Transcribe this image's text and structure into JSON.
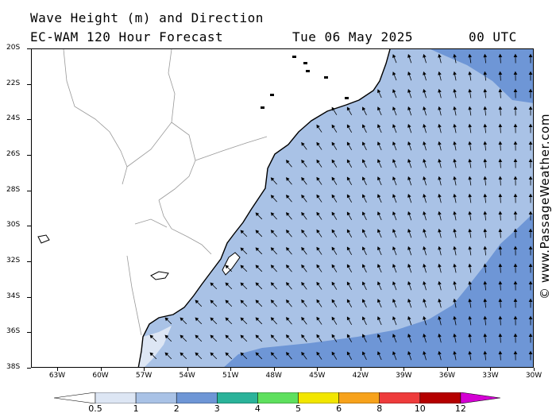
{
  "header": {
    "title": "Wave Height (m) and Direction",
    "model": "EC-WAM 120 Hour Forecast",
    "date": "Tue 06 May 2025",
    "time": "00 UTC"
  },
  "credit": "© www.PassageWeather.com",
  "map": {
    "region": "South Atlantic off southern Brazil / Uruguay",
    "lon_range": [
      -65,
      -30
    ],
    "lat_range": [
      -38,
      -20
    ],
    "lat_labels": [
      "20S",
      "22S",
      "24S",
      "26S",
      "28S",
      "30S",
      "32S",
      "34S",
      "36S",
      "38S"
    ],
    "lon_labels": [
      "63W",
      "60W",
      "57W",
      "54W",
      "51W",
      "48W",
      "45W",
      "42W",
      "39W",
      "36W",
      "33W",
      "30W"
    ],
    "land_color": "#ffffff",
    "arrow_color": "#000000",
    "wave_direction_note": "arrows point toward NW near coast, turning N offshore east"
  },
  "legend": {
    "labels": [
      "0.5",
      "1",
      "2",
      "3",
      "4",
      "5",
      "6",
      "8",
      "10",
      "12"
    ],
    "colors": [
      "#dde6f4",
      "#a9c2e6",
      "#6e96d6",
      "#2bb39a",
      "#5ee05e",
      "#f2e600",
      "#f7a21b",
      "#ee3b3b",
      "#b50000",
      "#d400d4"
    ]
  }
}
